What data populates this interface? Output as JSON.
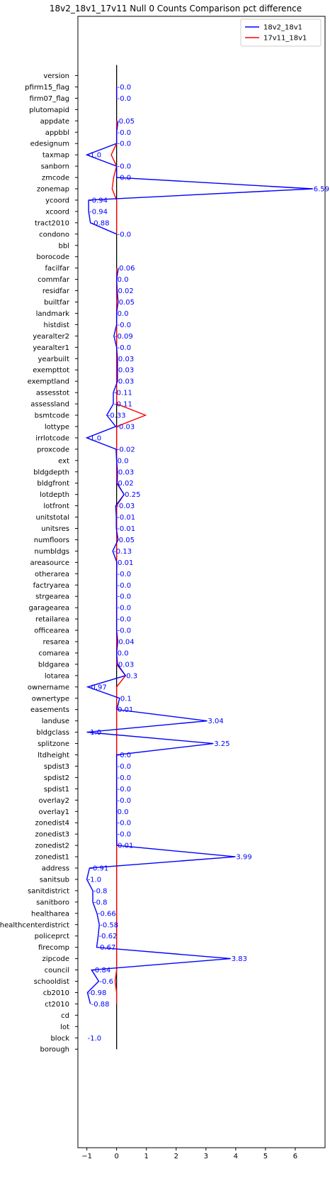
{
  "chart_data": {
    "type": "line",
    "title": "18v2_18v1_17v11 Null 0 Counts Comparison pct difference",
    "orientation": "horizontal",
    "xlim": [
      -1.3,
      7.0
    ],
    "xticks": [
      -1,
      0,
      1,
      2,
      3,
      4,
      5,
      6
    ],
    "legend": "top-right",
    "grid": false,
    "categories": [
      "version",
      "pfirm15_flag",
      "firm07_flag",
      "plutomapid",
      "appdate",
      "appbbl",
      "edesignum",
      "taxmap",
      "sanborn",
      "zmcode",
      "zonemap",
      "ycoord",
      "xcoord",
      "tract2010",
      "condono",
      "bbl",
      "borocode",
      "facilfar",
      "commfar",
      "residfar",
      "builtfar",
      "landmark",
      "histdist",
      "yearalter2",
      "yearalter1",
      "yearbuilt",
      "exempttot",
      "exemptland",
      "assesstot",
      "assessland",
      "bsmtcode",
      "lottype",
      "irrlotcode",
      "proxcode",
      "ext",
      "bldgdepth",
      "bldgfront",
      "lotdepth",
      "lotfront",
      "unitstotal",
      "unitsres",
      "numfloors",
      "numbldgs",
      "areasource",
      "otherarea",
      "factryarea",
      "strgearea",
      "garagearea",
      "retailarea",
      "officearea",
      "resarea",
      "comarea",
      "bldgarea",
      "lotarea",
      "ownername",
      "ownertype",
      "easements",
      "landuse",
      "bldgclass",
      "splitzone",
      "ltdheight",
      "spdist3",
      "spdist2",
      "spdist1",
      "overlay2",
      "overlay1",
      "zonedist4",
      "zonedist3",
      "zonedist2",
      "zonedist1",
      "address",
      "sanitsub",
      "sanitdistrict",
      "sanitboro",
      "healtharea",
      "healthcenterdistrict",
      "policeprct",
      "firecomp",
      "zipcode",
      "council",
      "schooldist",
      "cb2010",
      "ct2010",
      "cd",
      "lot",
      "block",
      "borough"
    ],
    "series": [
      {
        "name": "18v2_18v1",
        "color": "#0000ff",
        "values": [
          null,
          -0.0,
          -0.0,
          null,
          0.05,
          -0.0,
          -0.0,
          -1.0,
          -0.0,
          -0.0,
          6.59,
          -0.94,
          -0.94,
          -0.88,
          -0.0,
          null,
          null,
          0.06,
          0.0,
          0.02,
          0.05,
          0.0,
          -0.0,
          -0.09,
          -0.0,
          0.03,
          0.03,
          0.03,
          -0.11,
          -0.11,
          -0.33,
          -0.03,
          -1.0,
          -0.02,
          0.0,
          0.03,
          0.02,
          0.25,
          -0.03,
          -0.01,
          -0.01,
          0.05,
          -0.13,
          0.01,
          -0.0,
          -0.0,
          -0.0,
          -0.0,
          -0.0,
          -0.0,
          0.04,
          0.0,
          0.03,
          0.3,
          -0.97,
          0.1,
          0.01,
          3.04,
          -1.0,
          3.25,
          -0.0,
          -0.0,
          -0.0,
          -0.0,
          -0.0,
          0.0,
          -0.0,
          -0.0,
          0.01,
          3.99,
          -0.91,
          -1.0,
          -0.8,
          -0.8,
          -0.66,
          -0.58,
          -0.62,
          -0.67,
          3.83,
          -0.84,
          -0.6,
          -0.98,
          -0.88,
          null,
          null,
          -1.0,
          null
        ],
        "labels": [
          "",
          "-0.0",
          "-0.0",
          "",
          "0.05",
          "-0.0",
          "-0.0",
          "-1.0",
          "-0.0",
          "-0.0",
          "6.59",
          "-0.94",
          "-0.94",
          "-0.88",
          "-0.0",
          "",
          "",
          "0.06",
          "0.0",
          "0.02",
          "0.05",
          "0.0",
          "-0.0",
          "-0.09",
          "-0.0",
          "0.03",
          "0.03",
          "0.03",
          "-0.11",
          "-0.11",
          "-0.33",
          "-0.03",
          "-1.0",
          "-0.02",
          "0.0",
          "0.03",
          "0.02",
          "0.25",
          "-0.03",
          "-0.01",
          "-0.01",
          "0.05",
          "-0.13",
          "0.01",
          "-0.0",
          "-0.0",
          "-0.0",
          "-0.0",
          "-0.0",
          "-0.0",
          "0.04",
          "0.0",
          "0.03",
          "0.3",
          "-0.97",
          "0.1",
          "0.01",
          "3.04",
          "-1.0",
          "3.25",
          "-0.0",
          "-0.0",
          "-0.0",
          "-0.0",
          "-0.0",
          "0.0",
          "-0.0",
          "-0.0",
          "0.01",
          "3.99",
          "-0.91",
          "-1.0",
          "-0.8",
          "-0.8",
          "-0.66",
          "-0.58",
          "-0.62",
          "-0.67",
          "3.83",
          "-0.84",
          "-0.6",
          "-0.98",
          "-0.88",
          "",
          "",
          "-1.0",
          ""
        ]
      },
      {
        "name": "17v11_18v1",
        "color": "#ff0000",
        "values": [
          null,
          0.0,
          0.0,
          null,
          0.0,
          0.0,
          0.0,
          -0.18,
          0.0,
          -0.1,
          -0.15,
          0.0,
          0.0,
          0.0,
          0.0,
          null,
          null,
          0.0,
          0.0,
          0.0,
          0.0,
          0.0,
          0.0,
          0.0,
          0.0,
          0.0,
          0.0,
          0.0,
          0.0,
          0.0,
          0.97,
          0.0,
          0.0,
          0.0,
          0.0,
          0.0,
          0.0,
          0.25,
          0.0,
          0.0,
          0.0,
          0.0,
          0.0,
          0.0,
          0.0,
          0.0,
          0.0,
          0.0,
          0.0,
          0.0,
          0.0,
          0.0,
          0.0,
          0.3,
          0.0,
          0.0,
          0.0,
          0.0,
          0.0,
          0.0,
          0.0,
          0.0,
          0.0,
          0.0,
          0.0,
          0.0,
          0.0,
          0.0,
          0.0,
          0.0,
          0.0,
          0.0,
          0.0,
          0.0,
          0.0,
          0.0,
          0.0,
          0.0,
          0.0,
          0.0,
          -0.05,
          0.0,
          0.0,
          null,
          null,
          null,
          null
        ]
      }
    ],
    "ref_line_x": 0
  }
}
